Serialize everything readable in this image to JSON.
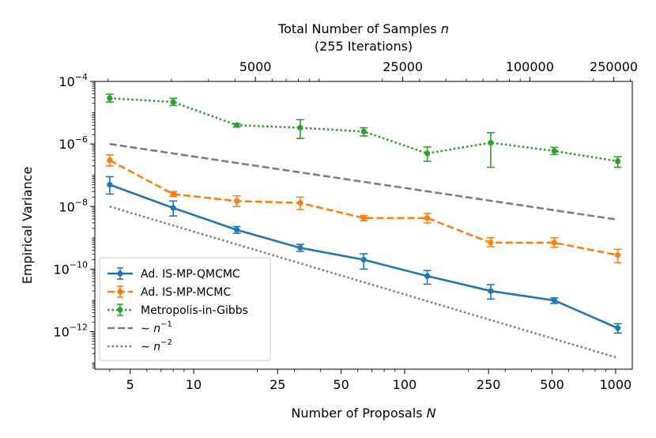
{
  "chart_data": {
    "type": "line",
    "scale": "log-log",
    "xlabel": "Number of Proposals",
    "xlabel_var": "N",
    "ylabel": "Empirical Variance",
    "top_axis_label": "Total Number of Samples",
    "top_axis_var": "n",
    "top_axis_sublabel": "(255 Iterations)",
    "xlim": [
      3.4,
      1200
    ],
    "ylim_exp": [
      -13.2,
      -4
    ],
    "x_ticks": [
      {
        "value": 5,
        "label": "5"
      },
      {
        "value": 10,
        "label": "10"
      },
      {
        "value": 25,
        "label": "25"
      },
      {
        "value": 50,
        "label": "50"
      },
      {
        "value": 100,
        "label": "100"
      },
      {
        "value": 250,
        "label": "250"
      },
      {
        "value": 500,
        "label": "500"
      },
      {
        "value": 1000,
        "label": "1000"
      }
    ],
    "top_ticks": [
      {
        "label": "5000",
        "n": 5000
      },
      {
        "label": "25000",
        "n": 25000
      },
      {
        "label": "100000",
        "n": 100000
      },
      {
        "label": "250000",
        "n": 250000
      }
    ],
    "y_ticks": [
      {
        "exp": -4,
        "base": "10",
        "sup": "−4"
      },
      {
        "exp": -6,
        "base": "10",
        "sup": "−6"
      },
      {
        "exp": -8,
        "base": "10",
        "sup": "−8"
      },
      {
        "exp": -10,
        "base": "10",
        "sup": "−10"
      },
      {
        "exp": -12,
        "base": "10",
        "sup": "−12"
      }
    ],
    "series": [
      {
        "name": "Ad. IS-MP-QMCMC",
        "color": "#1f77b4",
        "style": "solid",
        "marker": true,
        "errorbars": true,
        "x": [
          4,
          8,
          16,
          32,
          64,
          128,
          256,
          512,
          1024
        ],
        "y": [
          5e-08,
          9e-09,
          1.8e-09,
          4.8e-10,
          2e-10,
          6e-11,
          2e-11,
          1e-11,
          1.3e-12
        ],
        "y_low": [
          2.5e-08,
          5e-09,
          1.4e-09,
          3.7e-10,
          1e-10,
          3.3e-11,
          1.1e-11,
          8e-12,
          9e-13
        ],
        "y_high": [
          9e-08,
          1.5e-08,
          2.3e-09,
          6.2e-10,
          3.1e-10,
          9e-11,
          3.2e-11,
          1.2e-11,
          1.8e-12
        ]
      },
      {
        "name": "Ad. IS-MP-MCMC",
        "color": "#ff7f0e",
        "style": "dashed",
        "marker": true,
        "errorbars": true,
        "x": [
          4,
          8,
          16,
          32,
          64,
          128,
          256,
          512,
          1024
        ],
        "y": [
          3e-07,
          2.5e-08,
          1.5e-08,
          1.3e-08,
          4.3e-09,
          4.3e-09,
          7e-10,
          7e-10,
          2.8e-10
        ],
        "y_low": [
          2e-07,
          2.1e-08,
          1e-08,
          8e-09,
          3.5e-09,
          3e-09,
          5.2e-10,
          5e-10,
          1.6e-10
        ],
        "y_high": [
          4.5e-07,
          3e-08,
          2.2e-08,
          2e-08,
          5.2e-09,
          6e-09,
          1e-09,
          1e-09,
          4.3e-10
        ]
      },
      {
        "name": "Metropolis-in-Gibbs",
        "color": "#2ca02c",
        "style": "dotted",
        "marker": true,
        "errorbars": true,
        "x": [
          4,
          8,
          16,
          32,
          64,
          128,
          256,
          512,
          1024
        ],
        "y": [
          2.9e-05,
          2.2e-05,
          4e-06,
          3.3e-06,
          2.5e-06,
          5e-07,
          1.1e-06,
          6e-07,
          2.8e-07
        ],
        "y_low": [
          2.2e-05,
          1.7e-05,
          3.5e-06,
          1.5e-06,
          1.8e-06,
          2.8e-07,
          1.8e-07,
          4.6e-07,
          1.8e-07
        ],
        "y_high": [
          3.9e-05,
          2.9e-05,
          4.5e-06,
          6e-06,
          3.3e-06,
          8e-07,
          2.3e-06,
          7.8e-07,
          3.9e-07
        ]
      },
      {
        "name": "~ n^-1",
        "legend_label": "∼ n",
        "legend_sup": "−1",
        "color": "#7f7f7f",
        "style": "dashed",
        "marker": false,
        "errorbars": false,
        "x": [
          4,
          1024
        ],
        "y": [
          1e-06,
          3.8e-09
        ]
      },
      {
        "name": "~ n^-2",
        "legend_label": "∼ n",
        "legend_sup": "−2",
        "color": "#7f7f7f",
        "style": "dotted",
        "marker": false,
        "errorbars": false,
        "x": [
          4,
          1024
        ],
        "y": [
          1e-08,
          1.45e-13
        ]
      }
    ],
    "legend_position": "bottom-left"
  }
}
